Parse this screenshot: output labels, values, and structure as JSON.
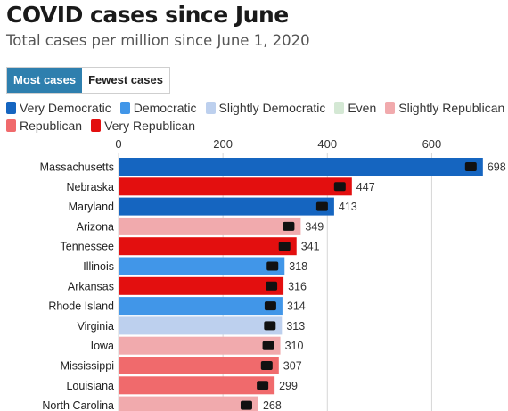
{
  "title": "COVID cases since June",
  "subtitle": "Total cases per million since June 1, 2020",
  "toggle": [
    {
      "label": "Most cases",
      "active": true
    },
    {
      "label": "Fewest cases",
      "active": false
    }
  ],
  "legend": [
    {
      "label": "Very Democratic",
      "color": "#1565c0"
    },
    {
      "label": "Democratic",
      "color": "#4196e8"
    },
    {
      "label": "Slightly Democratic",
      "color": "#bdd0ee"
    },
    {
      "label": "Even",
      "color": "#d4e8d4"
    },
    {
      "label": "Slightly Republican",
      "color": "#f1aaad"
    },
    {
      "label": "Republican",
      "color": "#f06a6c"
    },
    {
      "label": "Very Republican",
      "color": "#e30f0f"
    }
  ],
  "chart_data": {
    "type": "bar",
    "orientation": "horizontal",
    "title": "COVID cases since June",
    "subtitle": "Total cases per million since June 1, 2020",
    "xlim": [
      0,
      700
    ],
    "xticks": [
      0,
      200,
      400,
      600
    ],
    "grid": true,
    "legend_position": "top",
    "categories": [
      "Massachusetts",
      "Nebraska",
      "Maryland",
      "Arizona",
      "Tennessee",
      "Illinois",
      "Arkansas",
      "Rhode Island",
      "Virginia",
      "Iowa",
      "Mississippi",
      "Louisiana",
      "North Carolina"
    ],
    "values": [
      698,
      447,
      413,
      349,
      341,
      318,
      316,
      314,
      313,
      310,
      307,
      299,
      268
    ],
    "leaning": [
      "Very Democratic",
      "Very Republican",
      "Very Democratic",
      "Slightly Republican",
      "Very Republican",
      "Democratic",
      "Very Republican",
      "Democratic",
      "Slightly Democratic",
      "Slightly Republican",
      "Republican",
      "Republican",
      "Slightly Republican"
    ]
  }
}
